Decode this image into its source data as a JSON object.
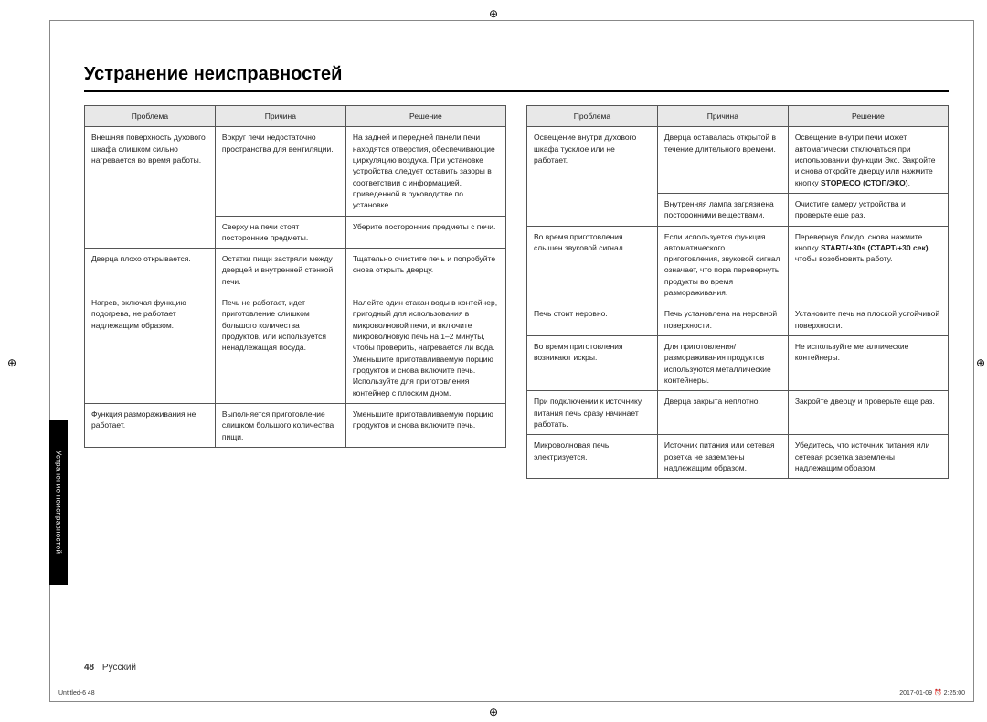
{
  "title": "Устранение неисправностей",
  "side_tab": "Устранение неисправностей",
  "page_number": "48",
  "language_label": "Русский",
  "print_meta_left": "Untitled-6   48",
  "print_meta_right": "2017-01-09   ⏰ 2:25:00",
  "headers": {
    "problem": "Проблема",
    "cause": "Причина",
    "solution": "Решение"
  },
  "left_sections": [
    {
      "problem": "Внешняя поверхность духового шкафа слишком сильно нагревается во время работы.",
      "items": [
        {
          "cause": "Вокруг печи недостаточно пространства для вентиляции.",
          "solution": "На задней и передней панели печи находятся отверстия, обеспечивающие циркуляцию воздуха. При установке устройства следует оставить зазоры в соответствии с информацией, приведенной в руководстве по установке."
        },
        {
          "cause": "Сверху на печи стоят посторонние предметы.",
          "solution": "Уберите посторонние предметы с печи."
        }
      ]
    },
    {
      "problem": "Дверца плохо открывается.",
      "items": [
        {
          "cause": "Остатки пищи застряли между дверцей и внутренней стенкой печи.",
          "solution": "Тщательно очистите печь и попробуйте снова открыть дверцу."
        }
      ]
    },
    {
      "problem": "Нагрев, включая функцию подогрева, не работает надлежащим образом.",
      "items": [
        {
          "cause": "Печь не работает, идет приготовление слишком большого количества продуктов, или используется ненадлежащая посуда.",
          "solution": "Налейте один стакан воды в контейнер, пригодный для использования в микроволновой печи, и включите микроволновую печь на 1–2 минуты, чтобы проверить, нагревается ли вода. Уменьшите приготавливаемую порцию продуктов и снова включите печь. Используйте для приготовления контейнер с плоским дном."
        }
      ]
    },
    {
      "problem": "Функция размораживания не работает.",
      "items": [
        {
          "cause": "Выполняется приготовление слишком большого количества пищи.",
          "solution": "Уменьшите приготавливаемую порцию продуктов и снова включите печь."
        }
      ]
    }
  ],
  "right_sections": [
    {
      "problem": "Освещение внутри духового шкафа тусклое или не работает.",
      "items": [
        {
          "cause": "Дверца оставалась открытой в течение длительного времени.",
          "solution_html": "Освещение внутри печи может автоматически отключаться при использовании функции Эко. Закройте и снова откройте дверцу или нажмите кнопку <b class='inline'>STOP/ECO (СТОП/ЭКО)</b>."
        },
        {
          "cause": "Внутренняя лампа загрязнена посторонними веществами.",
          "solution": "Очистите камеру устройства и проверьте еще раз."
        }
      ]
    },
    {
      "problem": "Во время приготовления слышен звуковой сигнал.",
      "items": [
        {
          "cause": "Если используется функция автоматического приготовления, звуковой сигнал означает, что пора перевернуть продукты во время размораживания.",
          "solution_html": "Перевернув блюдо, снова нажмите кнопку <b class='inline'>START/+30s (СТАРТ/+30 сек)</b>, чтобы возобновить работу."
        }
      ]
    },
    {
      "problem": "Печь стоит неровно.",
      "items": [
        {
          "cause": "Печь установлена на неровной поверхности.",
          "solution": "Установите печь на плоской устойчивой поверхности."
        }
      ]
    },
    {
      "problem": "Во время приготовления возникают искры.",
      "items": [
        {
          "cause": "Для приготовления/ размораживания продуктов используются металлические контейнеры.",
          "solution": "Не используйте металлические контейнеры."
        }
      ]
    },
    {
      "problem": "При подключении к источнику питания печь сразу начинает работать.",
      "items": [
        {
          "cause": "Дверца закрыта неплотно.",
          "solution": "Закройте дверцу и проверьте еще раз."
        }
      ]
    },
    {
      "problem": "Микроволновая печь электризуется.",
      "items": [
        {
          "cause": "Источник питания или сетевая розетка не заземлены надлежащим образом.",
          "solution": "Убедитесь, что источник питания или сетевая розетка заземлены надлежащим образом."
        }
      ]
    }
  ]
}
